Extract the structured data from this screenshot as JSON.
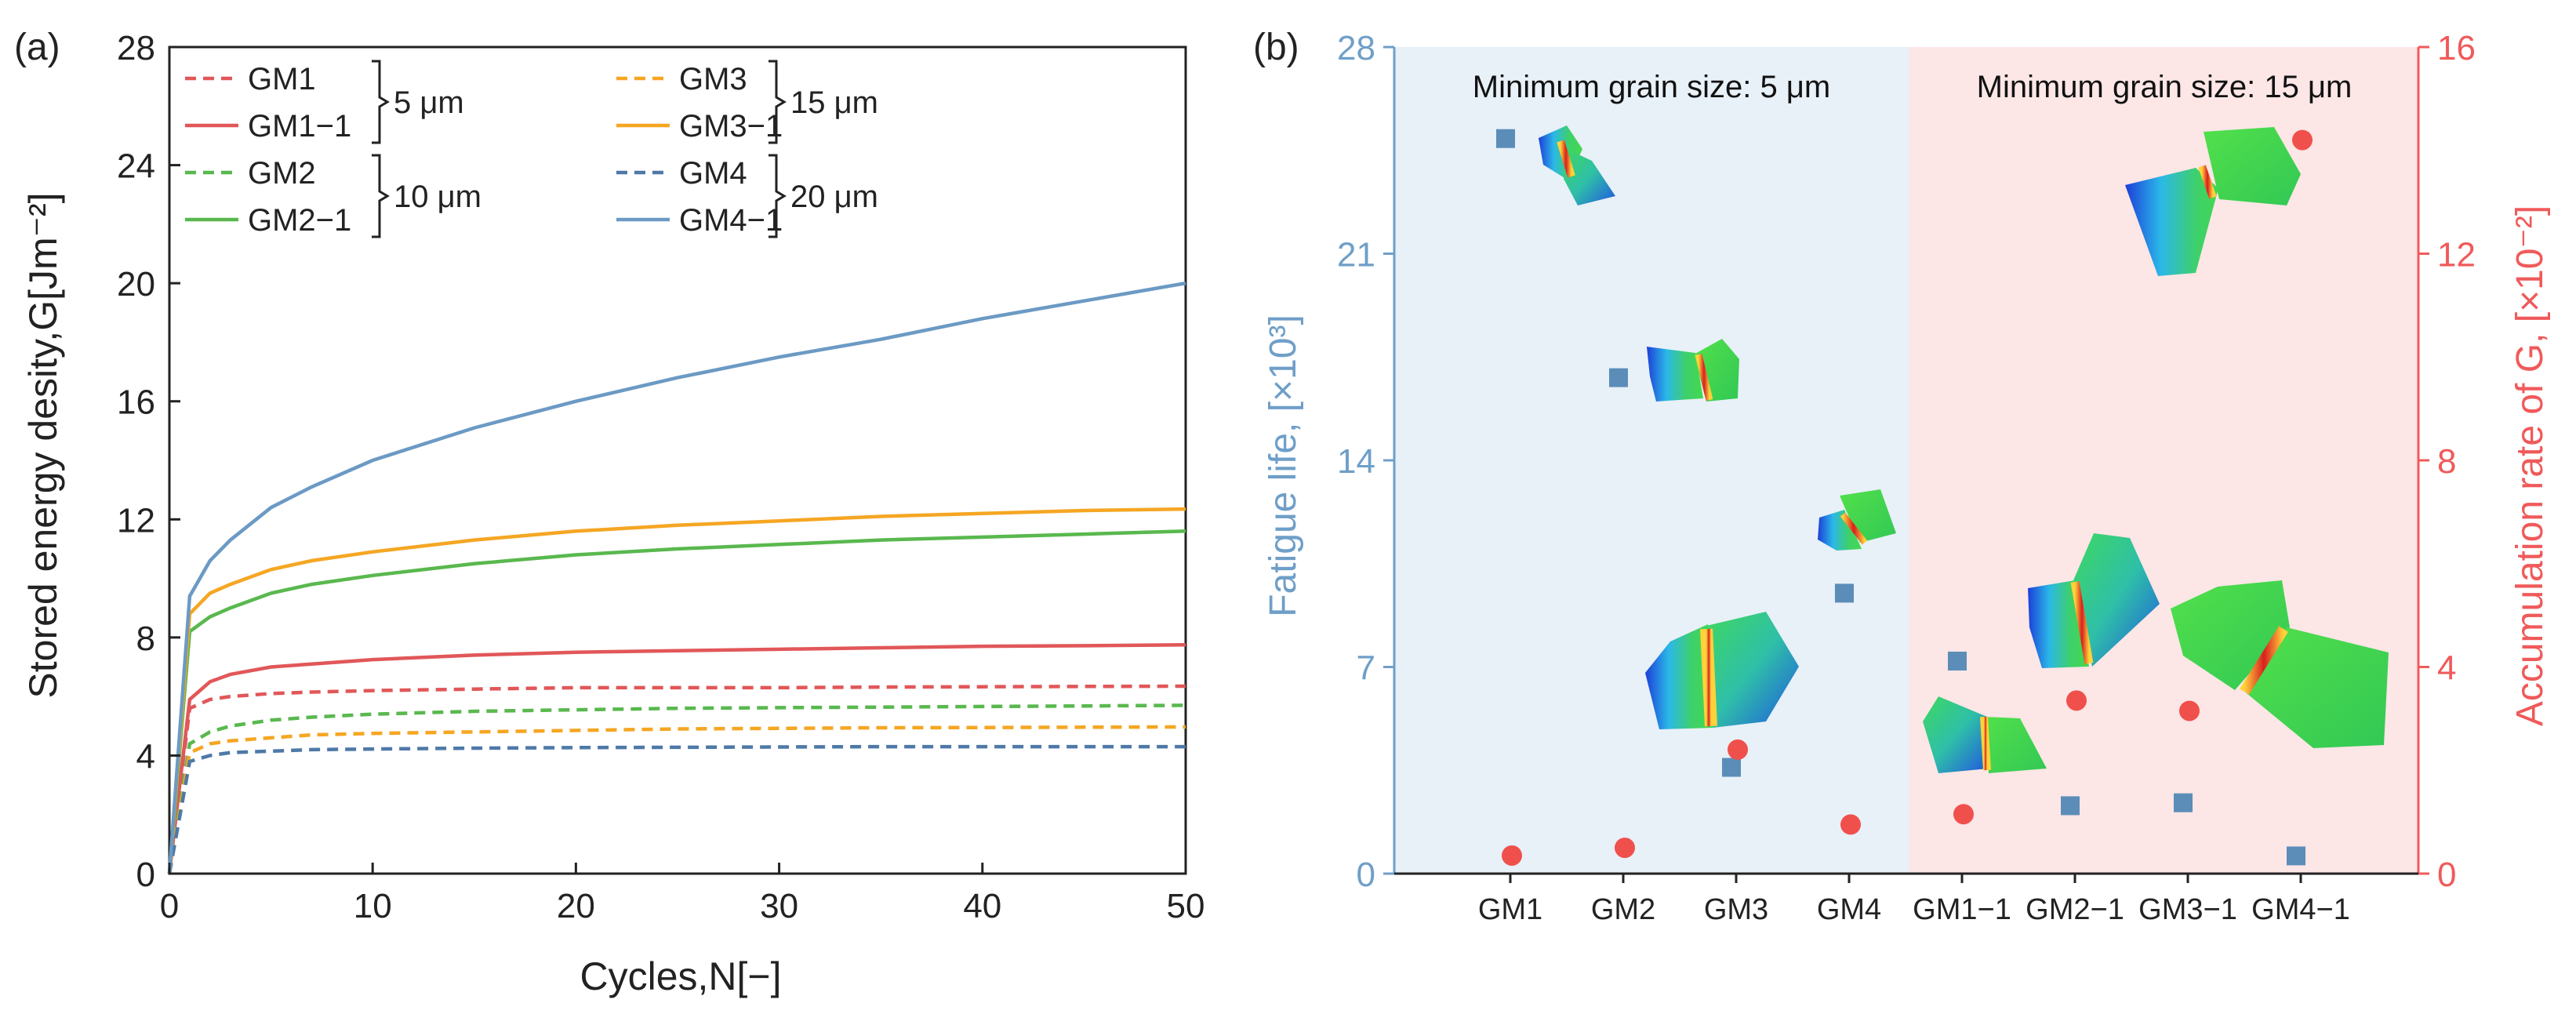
{
  "panel_a": {
    "label": "(a)",
    "chart_data": {
      "type": "line",
      "xlabel": "Cycles,N[−]",
      "ylabel": "Stored energy desity,G[Jm⁻²]",
      "xlim": [
        0,
        50
      ],
      "ylim": [
        0,
        28
      ],
      "xticks": [
        "0",
        "10",
        "20",
        "30",
        "40",
        "50"
      ],
      "yticks": [
        "0",
        "4",
        "8",
        "12",
        "16",
        "20",
        "24",
        "28"
      ],
      "grid": false,
      "legend_position": "top-left",
      "series": [
        {
          "name": "GM1",
          "style": "dashed",
          "color": "#e15759",
          "x": [
            0,
            1,
            2,
            3,
            5,
            7,
            10,
            15,
            20,
            25,
            30,
            35,
            40,
            45,
            50
          ],
          "y": [
            0,
            5.6,
            5.9,
            6.0,
            6.1,
            6.15,
            6.2,
            6.25,
            6.3,
            6.3,
            6.3,
            6.32,
            6.33,
            6.34,
            6.35
          ]
        },
        {
          "name": "GM1−1",
          "style": "solid",
          "color": "#e15759",
          "x": [
            0,
            1,
            2,
            3,
            5,
            7,
            10,
            15,
            20,
            25,
            30,
            35,
            40,
            45,
            50
          ],
          "y": [
            0,
            5.9,
            6.5,
            6.75,
            7.0,
            7.1,
            7.25,
            7.4,
            7.5,
            7.55,
            7.6,
            7.65,
            7.7,
            7.72,
            7.75
          ]
        },
        {
          "name": "GM2",
          "style": "dashed",
          "color": "#59b84e",
          "x": [
            0,
            1,
            2,
            3,
            5,
            7,
            10,
            15,
            20,
            25,
            30,
            35,
            40,
            45,
            50
          ],
          "y": [
            0,
            4.4,
            4.8,
            5.0,
            5.2,
            5.3,
            5.4,
            5.5,
            5.55,
            5.6,
            5.62,
            5.64,
            5.66,
            5.68,
            5.7
          ]
        },
        {
          "name": "GM2−1",
          "style": "solid",
          "color": "#59b84e",
          "x": [
            0,
            1,
            2,
            3,
            5,
            7,
            10,
            15,
            20,
            25,
            30,
            35,
            40,
            45,
            50
          ],
          "y": [
            0,
            8.2,
            8.7,
            9.0,
            9.5,
            9.8,
            10.1,
            10.5,
            10.8,
            11.0,
            11.15,
            11.3,
            11.4,
            11.5,
            11.6
          ]
        },
        {
          "name": "GM3",
          "style": "dashed",
          "color": "#f5a623",
          "x": [
            0,
            1,
            2,
            3,
            5,
            7,
            10,
            15,
            20,
            25,
            30,
            35,
            40,
            45,
            50
          ],
          "y": [
            0,
            4.1,
            4.4,
            4.5,
            4.6,
            4.7,
            4.75,
            4.8,
            4.85,
            4.9,
            4.92,
            4.94,
            4.95,
            4.96,
            4.97
          ]
        },
        {
          "name": "GM3−1",
          "style": "solid",
          "color": "#f5a623",
          "x": [
            0,
            1,
            2,
            3,
            5,
            7,
            10,
            15,
            20,
            25,
            30,
            35,
            40,
            45,
            50
          ],
          "y": [
            0,
            8.8,
            9.5,
            9.8,
            10.3,
            10.6,
            10.9,
            11.3,
            11.6,
            11.8,
            11.95,
            12.1,
            12.2,
            12.3,
            12.35
          ]
        },
        {
          "name": "GM4",
          "style": "dashed",
          "color": "#4e79a7",
          "x": [
            0,
            1,
            2,
            3,
            5,
            7,
            10,
            15,
            20,
            25,
            30,
            35,
            40,
            45,
            50
          ],
          "y": [
            0,
            3.8,
            4.0,
            4.1,
            4.15,
            4.2,
            4.22,
            4.25,
            4.27,
            4.28,
            4.29,
            4.3,
            4.3,
            4.3,
            4.3
          ]
        },
        {
          "name": "GM4−1",
          "style": "solid",
          "color": "#6b9ac4",
          "x": [
            0,
            1,
            2,
            3,
            5,
            7,
            10,
            15,
            20,
            25,
            30,
            35,
            40,
            45,
            50
          ],
          "y": [
            0,
            9.4,
            10.6,
            11.3,
            12.4,
            13.1,
            14.0,
            15.1,
            16.0,
            16.8,
            17.5,
            18.1,
            18.8,
            19.4,
            20.0
          ]
        }
      ],
      "legend_groups": [
        {
          "label": "5 μm"
        },
        {
          "label": "10 μm"
        },
        {
          "label": "15 μm"
        },
        {
          "label": "20 μm"
        }
      ]
    }
  },
  "panel_b": {
    "label": "(b)",
    "chart_data": {
      "type": "scatter",
      "categories": [
        "GM1",
        "GM2",
        "GM3",
        "GM4",
        "GM1−1",
        "GM2−1",
        "GM3−1",
        "GM4−1"
      ],
      "ylabel_left": "Fatigue life, [×10³]",
      "ylabel_right": "Accumulation rate of G, [×10⁻²]",
      "ylim_left": [
        0,
        28
      ],
      "ylim_right": [
        0,
        16
      ],
      "yticks_left": [
        "0",
        "7",
        "14",
        "21",
        "28"
      ],
      "yticks_right": [
        "0",
        "4",
        "8",
        "12",
        "16"
      ],
      "regions": [
        {
          "title": "Minimum grain size:  5 μm",
          "color": "#e8f0f8"
        },
        {
          "title": "Minimum grain size:  15 μm",
          "color": "#fce6e6"
        }
      ],
      "series": [
        {
          "name": "Fatigue life",
          "axis": "left",
          "marker": "square",
          "color": "#5b8db8",
          "values": [
            24.9,
            16.8,
            3.6,
            9.5,
            7.2,
            2.3,
            2.4,
            0.6
          ]
        },
        {
          "name": "Accumulation rate of G",
          "axis": "right",
          "marker": "circle",
          "color": "#f0504c",
          "values": [
            0.35,
            0.5,
            2.4,
            0.95,
            1.15,
            3.35,
            3.15,
            14.2
          ]
        }
      ]
    }
  },
  "colors": {
    "axis": "#222222",
    "left_axis_b": "#6f9fc8",
    "right_axis_b": "#f05a5a"
  }
}
